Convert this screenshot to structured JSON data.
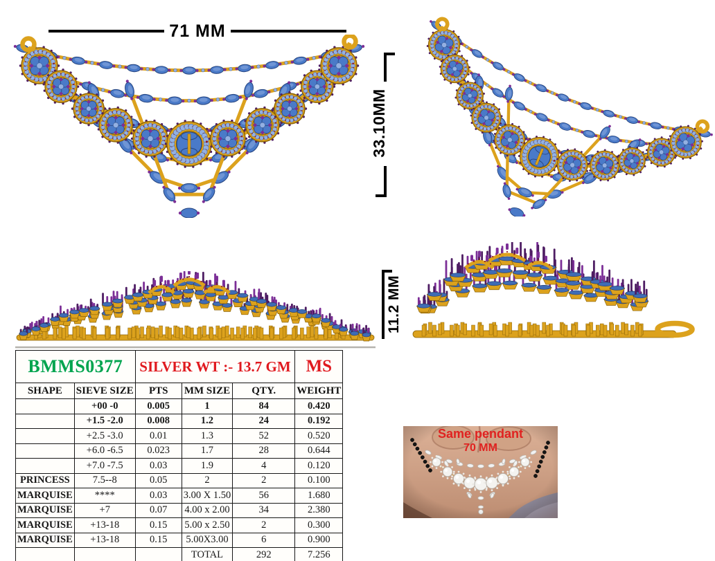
{
  "dimensions": {
    "width": "71 MM",
    "height": "33.10MM",
    "depth": "11.2 MM"
  },
  "spec_table": {
    "design_code": "BMMS0377",
    "silver_weight_label": "SILVER WT :- 13.7 GM",
    "metal_code": "MS",
    "columns": [
      "SHAPE",
      "SIEVE SIZE",
      "PTS",
      "MM SIZE",
      "QTY.",
      "WEIGHT"
    ],
    "rows": [
      [
        "",
        "+00 -0",
        "0.005",
        "1",
        "84",
        "0.420"
      ],
      [
        "",
        "+1.5 -2.0",
        "0.008",
        "1.2",
        "24",
        "0.192"
      ],
      [
        "",
        "+2.5 -3.0",
        "0.01",
        "1.3",
        "52",
        "0.520"
      ],
      [
        "",
        "+6.0 -6.5",
        "0.023",
        "1.7",
        "28",
        "0.644"
      ],
      [
        "",
        "+7.0 -7.5",
        "0.03",
        "1.9",
        "4",
        "0.120"
      ],
      [
        "PRINCESS",
        "7.5--8",
        "0.05",
        "2",
        "2",
        "0.100"
      ],
      [
        "MARQUISE",
        "****",
        "0.03",
        "3.00 X 1.50",
        "56",
        "1.680"
      ],
      [
        "MARQUISE",
        "+7",
        "0.07",
        "4.00 x 2.00",
        "34",
        "2.380"
      ],
      [
        "MARQUISE",
        "+13-18",
        "0.15",
        "5.00 x 2.50",
        "2",
        "0.300"
      ],
      [
        "MARQUISE",
        "+13-18",
        "0.15",
        "5.00X3.00",
        "6",
        "0.900"
      ]
    ],
    "total_row": [
      "",
      "",
      "",
      "TOTAL",
      "292",
      "7.256"
    ]
  },
  "reference_photo": {
    "line1": "Same pendant",
    "line2": "70 MM"
  },
  "colors": {
    "code_green": "#00a44f",
    "label_red": "#e0191f",
    "gold": "#dca21d",
    "gold_dark": "#8a6206",
    "gold_light": "#f3c84a",
    "stone_blue": "#4a7ac8",
    "stone_blue_dark": "#24437e",
    "stone_blue_light": "#93b0e2",
    "prong_purple": "#7c2f97",
    "prong_purple_dark": "#4e1d63",
    "bezel_red": "#8e1a2a",
    "skin": "#d3a88c",
    "diamond_white": "#f0f0f0"
  }
}
